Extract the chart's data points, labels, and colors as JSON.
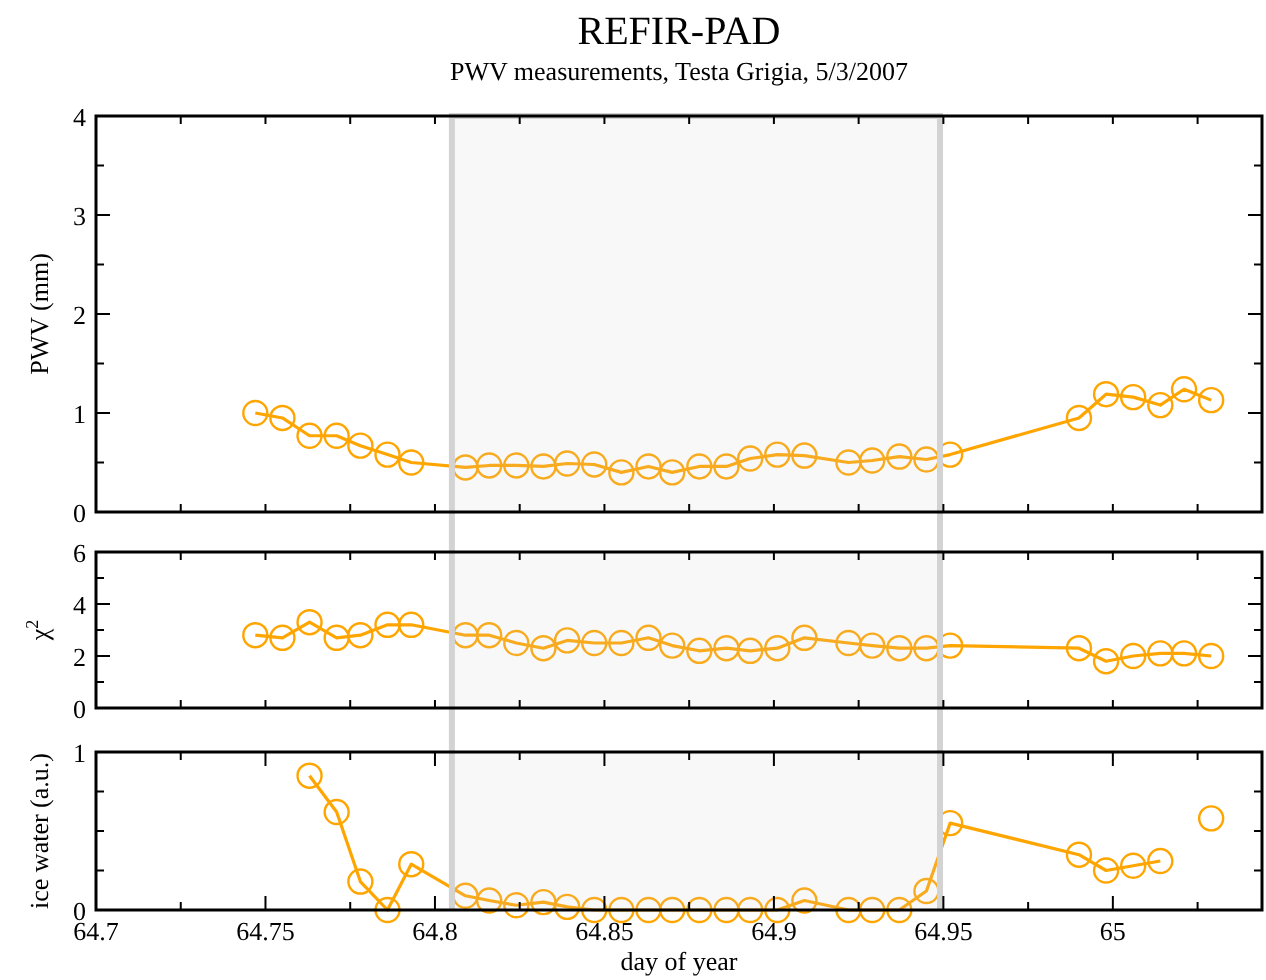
{
  "chart_data": [
    {
      "type": "line",
      "title": "REFIR-PAD",
      "subtitle": "PWV measurements, Testa Grigia, 5/3/2007",
      "ylabel": "PWV (mm)",
      "x": [
        64.747,
        64.755,
        64.763,
        64.771,
        64.778,
        64.786,
        64.793,
        64.809,
        64.816,
        64.824,
        64.832,
        64.839,
        64.847,
        64.855,
        64.863,
        64.87,
        64.878,
        64.886,
        64.893,
        64.901,
        64.909,
        64.922,
        64.929,
        64.937,
        64.945,
        64.952,
        64.99,
        64.998,
        65.006,
        65.014,
        65.021,
        65.029
      ],
      "series": [
        {
          "color": "#ffa500",
          "values": [
            1.0,
            0.95,
            0.77,
            0.77,
            0.67,
            0.58,
            0.5,
            0.45,
            0.47,
            0.47,
            0.46,
            0.49,
            0.48,
            0.4,
            0.46,
            0.4,
            0.46,
            0.46,
            0.54,
            0.58,
            0.57,
            0.5,
            0.52,
            0.56,
            0.53,
            0.58,
            0.95,
            1.19,
            1.16,
            1.08,
            1.24,
            1.13
          ]
        }
      ],
      "xlim": [
        64.7,
        65.044
      ],
      "ylim": [
        0,
        4
      ],
      "xticks": [
        {
          "value": 64.7,
          "label": null
        },
        {
          "value": 64.725,
          "label": null
        },
        {
          "value": 64.75,
          "label": null
        },
        {
          "value": 64.775,
          "label": null
        },
        {
          "value": 64.8,
          "label": null
        },
        {
          "value": 64.825,
          "label": null
        },
        {
          "value": 64.85,
          "label": null
        },
        {
          "value": 64.875,
          "label": null
        },
        {
          "value": 64.9,
          "label": null
        },
        {
          "value": 64.925,
          "label": null
        },
        {
          "value": 64.95,
          "label": null
        },
        {
          "value": 64.975,
          "label": null
        },
        {
          "value": 65,
          "label": null
        },
        {
          "value": 65.025,
          "label": null
        }
      ],
      "yticks": [
        0,
        {
          "value": 0.5,
          "label": null
        },
        1,
        {
          "value": 1.5,
          "label": null
        },
        2,
        {
          "value": 2.5,
          "label": null
        },
        3,
        {
          "value": 3.5,
          "label": null
        },
        4
      ],
      "tick_labels": "y",
      "marker": "circle",
      "bands": [
        {
          "axis": "x",
          "from": 64.805,
          "to": 64.949,
          "color": "#d3d3d3"
        }
      ]
    },
    {
      "type": "line",
      "ylabel": "χ$^{2}$",
      "x": [
        64.747,
        64.755,
        64.763,
        64.771,
        64.778,
        64.786,
        64.793,
        64.809,
        64.816,
        64.824,
        64.832,
        64.839,
        64.847,
        64.855,
        64.863,
        64.87,
        64.878,
        64.886,
        64.893,
        64.901,
        64.909,
        64.922,
        64.929,
        64.937,
        64.945,
        64.952,
        64.99,
        64.998,
        65.006,
        65.014,
        65.021,
        65.029
      ],
      "series": [
        {
          "color": "#ffa500",
          "values": [
            2.8,
            2.7,
            3.3,
            2.7,
            2.8,
            3.2,
            3.2,
            2.8,
            2.8,
            2.5,
            2.3,
            2.6,
            2.5,
            2.5,
            2.7,
            2.4,
            2.2,
            2.3,
            2.2,
            2.3,
            2.7,
            2.5,
            2.4,
            2.3,
            2.3,
            2.4,
            2.3,
            1.8,
            2.0,
            2.1,
            2.1,
            2.0
          ]
        }
      ],
      "xlim": [
        64.7,
        65.044
      ],
      "ylim": [
        0,
        6
      ],
      "xticks": [
        {
          "value": 64.7,
          "label": null
        },
        {
          "value": 64.725,
          "label": null
        },
        {
          "value": 64.75,
          "label": null
        },
        {
          "value": 64.775,
          "label": null
        },
        {
          "value": 64.8,
          "label": null
        },
        {
          "value": 64.825,
          "label": null
        },
        {
          "value": 64.85,
          "label": null
        },
        {
          "value": 64.875,
          "label": null
        },
        {
          "value": 64.9,
          "label": null
        },
        {
          "value": 64.925,
          "label": null
        },
        {
          "value": 64.95,
          "label": null
        },
        {
          "value": 64.975,
          "label": null
        },
        {
          "value": 65,
          "label": null
        },
        {
          "value": 65.025,
          "label": null
        }
      ],
      "yticks": [
        0,
        {
          "value": 1,
          "label": null
        },
        2,
        {
          "value": 3,
          "label": null
        },
        4,
        {
          "value": 5,
          "label": null
        },
        6
      ],
      "tick_labels": "y",
      "marker": "circle",
      "bands": [
        {
          "axis": "x",
          "from": 64.805,
          "to": 64.949,
          "color": "#d3d3d3"
        }
      ]
    },
    {
      "type": "line",
      "ylabel": "ice water (a.u.)",
      "xlabel": "day of year",
      "x": [
        64.763,
        64.771,
        64.778,
        64.786,
        64.793,
        64.809,
        64.816,
        64.824,
        64.832,
        64.839,
        64.847,
        64.855,
        64.863,
        64.87,
        64.878,
        64.886,
        64.893,
        64.901,
        64.909,
        64.922,
        64.929,
        64.937,
        64.945,
        64.952,
        64.99,
        64.998,
        65.006,
        65.014,
        65.021,
        65.029
      ],
      "series": [
        {
          "color": "#ffa500",
          "values": [
            0.85,
            0.62,
            0.18,
            0,
            0.29,
            0.09,
            0.06,
            0.03,
            0.05,
            0.02,
            0,
            0,
            0,
            0,
            0,
            0,
            0,
            0,
            0.06,
            0,
            0,
            0,
            0.12,
            0.55,
            0.35,
            0.25,
            0.28,
            0.31,
            null,
            0.58
          ]
        }
      ],
      "xlim": [
        64.7,
        65.044
      ],
      "ylim": [
        0,
        1
      ],
      "xticks": [
        64.7,
        {
          "value": 64.725,
          "label": null
        },
        64.75,
        {
          "value": 64.775,
          "label": null
        },
        64.8,
        {
          "value": 64.825,
          "label": null
        },
        64.85,
        {
          "value": 64.875,
          "label": null
        },
        64.9,
        {
          "value": 64.925,
          "label": null
        },
        64.95,
        {
          "value": 64.975,
          "label": null
        },
        65,
        {
          "value": 65.025,
          "label": null
        }
      ],
      "yticks": [
        0,
        {
          "value": 0.25,
          "label": null
        },
        {
          "value": 0.5,
          "label": null
        },
        {
          "value": 0.75,
          "label": null
        },
        1
      ],
      "marker": "circle",
      "bands": [
        {
          "axis": "x",
          "from": 64.805,
          "to": 64.949,
          "color": "#d3d3d3"
        }
      ]
    }
  ]
}
